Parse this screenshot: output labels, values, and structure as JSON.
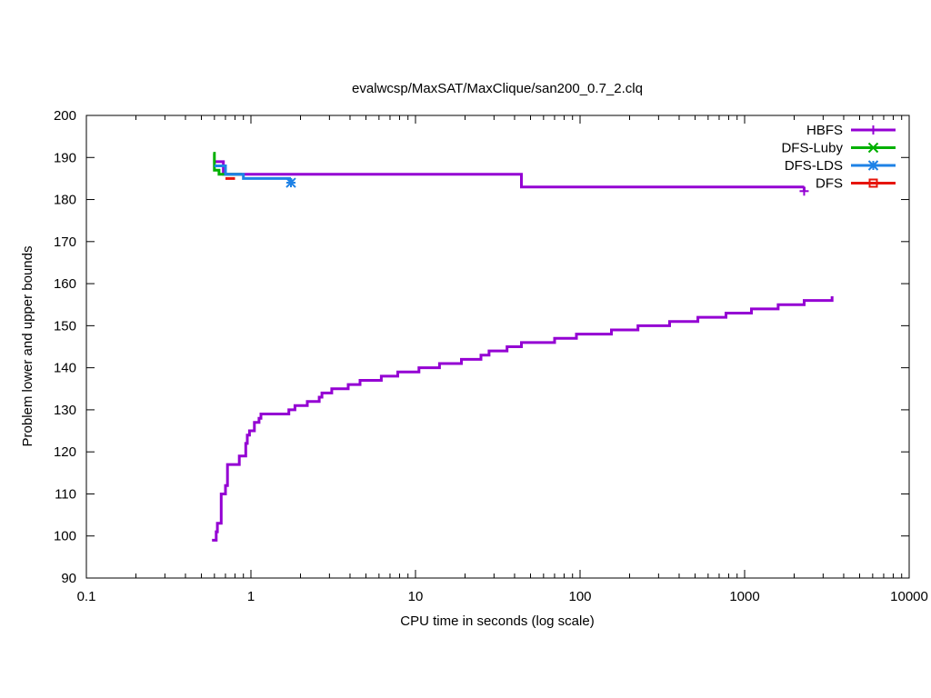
{
  "chart_data": {
    "type": "line",
    "title": "evalwcsp/MaxSAT/MaxClique/san200_0.7_2.clq",
    "xlabel": "CPU time in seconds (log scale)",
    "ylabel": "Problem lower and upper bounds",
    "xscale": "log",
    "xlim": [
      0.1,
      10000
    ],
    "ylim": [
      90,
      200
    ],
    "grid": false,
    "legend_position": "top-right",
    "x_ticks": [
      {
        "v": 0.1,
        "label": "0.1"
      },
      {
        "v": 1,
        "label": "1"
      },
      {
        "v": 10,
        "label": "10"
      },
      {
        "v": 100,
        "label": "100"
      },
      {
        "v": 1000,
        "label": "1000"
      },
      {
        "v": 10000,
        "label": "10000"
      }
    ],
    "y_ticks": [
      {
        "v": 90,
        "label": "90"
      },
      {
        "v": 100,
        "label": "100"
      },
      {
        "v": 110,
        "label": "110"
      },
      {
        "v": 120,
        "label": "120"
      },
      {
        "v": 130,
        "label": "130"
      },
      {
        "v": 140,
        "label": "140"
      },
      {
        "v": 150,
        "label": "150"
      },
      {
        "v": 160,
        "label": "160"
      },
      {
        "v": 170,
        "label": "170"
      },
      {
        "v": 180,
        "label": "180"
      },
      {
        "v": 190,
        "label": "190"
      },
      {
        "v": 200,
        "label": "200"
      }
    ],
    "series": [
      {
        "name": "HBFS",
        "color": "#9400d3",
        "marker": "plus",
        "steps": [
          {
            "x": 0.6,
            "y": 189
          },
          {
            "x": 0.68,
            "y": 186
          },
          {
            "x": 44,
            "y": 183
          },
          {
            "x": 2300,
            "y": 183
          }
        ],
        "end_point": {
          "x": 2300,
          "y": 182
        }
      },
      {
        "name": "HBFS-lower",
        "color": "#9400d3",
        "marker": "none",
        "steps": [
          {
            "x": 0.58,
            "y": 99
          },
          {
            "x": 0.615,
            "y": 101
          },
          {
            "x": 0.625,
            "y": 103
          },
          {
            "x": 0.66,
            "y": 110
          },
          {
            "x": 0.7,
            "y": 112
          },
          {
            "x": 0.72,
            "y": 117
          },
          {
            "x": 0.85,
            "y": 119
          },
          {
            "x": 0.93,
            "y": 122
          },
          {
            "x": 0.95,
            "y": 124
          },
          {
            "x": 0.98,
            "y": 125
          },
          {
            "x": 1.05,
            "y": 127
          },
          {
            "x": 1.12,
            "y": 128
          },
          {
            "x": 1.15,
            "y": 129
          },
          {
            "x": 1.7,
            "y": 130
          },
          {
            "x": 1.85,
            "y": 131
          },
          {
            "x": 2.2,
            "y": 132
          },
          {
            "x": 2.6,
            "y": 133
          },
          {
            "x": 2.7,
            "y": 134
          },
          {
            "x": 3.1,
            "y": 135
          },
          {
            "x": 3.9,
            "y": 136
          },
          {
            "x": 4.6,
            "y": 137
          },
          {
            "x": 6.2,
            "y": 138
          },
          {
            "x": 7.8,
            "y": 139
          },
          {
            "x": 10.5,
            "y": 140
          },
          {
            "x": 14,
            "y": 141
          },
          {
            "x": 19,
            "y": 142
          },
          {
            "x": 25,
            "y": 143
          },
          {
            "x": 28,
            "y": 144
          },
          {
            "x": 36,
            "y": 145
          },
          {
            "x": 44,
            "y": 146
          },
          {
            "x": 70,
            "y": 147
          },
          {
            "x": 95,
            "y": 148
          },
          {
            "x": 155,
            "y": 149
          },
          {
            "x": 225,
            "y": 150
          },
          {
            "x": 350,
            "y": 151
          },
          {
            "x": 520,
            "y": 152
          },
          {
            "x": 770,
            "y": 153
          },
          {
            "x": 1100,
            "y": 154
          },
          {
            "x": 1600,
            "y": 155
          },
          {
            "x": 2300,
            "y": 156
          },
          {
            "x": 3400,
            "y": 157
          }
        ]
      },
      {
        "name": "DFS-Luby",
        "color": "#00b000",
        "marker": "cross",
        "steps": [
          {
            "x": 0.59,
            "y": 191
          },
          {
            "x": 0.6,
            "y": 187
          },
          {
            "x": 0.64,
            "y": 186
          },
          {
            "x": 0.88,
            "y": 186
          }
        ]
      },
      {
        "name": "DFS-LDS",
        "color": "#1e82e6",
        "marker": "star",
        "steps": [
          {
            "x": 0.6,
            "y": 188
          },
          {
            "x": 0.7,
            "y": 186
          },
          {
            "x": 0.9,
            "y": 185
          },
          {
            "x": 1.75,
            "y": 185
          }
        ],
        "end_point": {
          "x": 1.75,
          "y": 184
        }
      },
      {
        "name": "DFS",
        "color": "#e6140a",
        "marker": "square",
        "steps": [
          {
            "x": 0.7,
            "y": 185
          },
          {
            "x": 0.8,
            "y": 185
          }
        ]
      }
    ],
    "legend": [
      {
        "label": "HBFS",
        "color": "#9400d3",
        "marker": "plus"
      },
      {
        "label": "DFS-Luby",
        "color": "#00b000",
        "marker": "cross"
      },
      {
        "label": "DFS-LDS",
        "color": "#1e82e6",
        "marker": "star"
      },
      {
        "label": "DFS",
        "color": "#e6140a",
        "marker": "square"
      }
    ]
  }
}
